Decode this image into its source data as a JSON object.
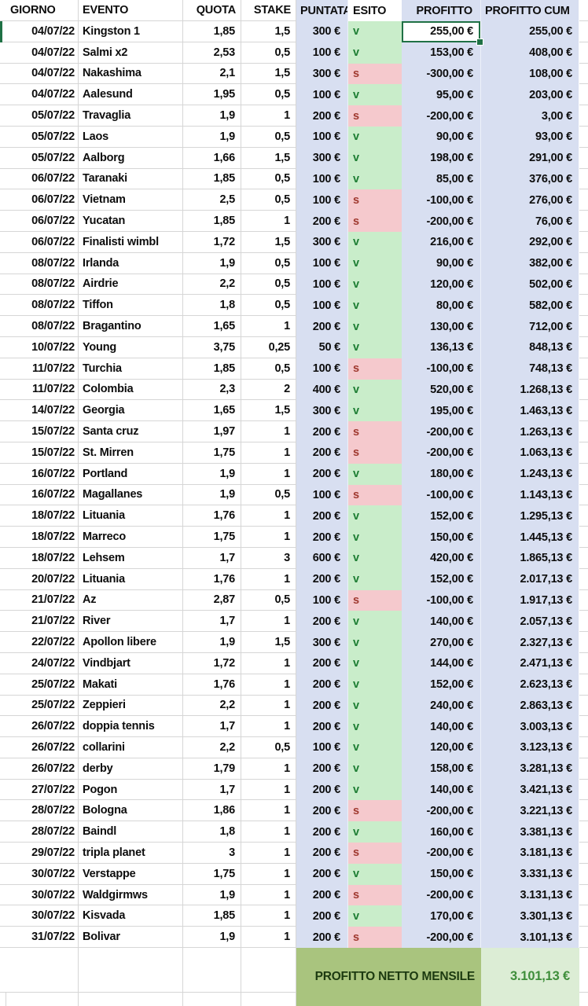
{
  "sheet": {
    "columns": [
      {
        "key": "giorno",
        "label": "GIORNO"
      },
      {
        "key": "evento",
        "label": "EVENTO"
      },
      {
        "key": "quota",
        "label": "QUOTA"
      },
      {
        "key": "stake",
        "label": "STAKE"
      },
      {
        "key": "puntata",
        "label": "PUNTATA"
      },
      {
        "key": "esito",
        "label": "ESITO"
      },
      {
        "key": "profitto",
        "label": "PROFITTO"
      },
      {
        "key": "cum",
        "label": "PROFITTO CUM"
      }
    ],
    "rows": [
      {
        "giorno": "04/07/22",
        "evento": "Kingston 1",
        "quota": "1,85",
        "stake": "1,5",
        "puntata": "300 €",
        "esito": "v",
        "profitto": "255,00 €",
        "cum": "255,00 €"
      },
      {
        "giorno": "04/07/22",
        "evento": "Salmi x2",
        "quota": "2,53",
        "stake": "0,5",
        "puntata": "100 €",
        "esito": "v",
        "profitto": "153,00 €",
        "cum": "408,00 €"
      },
      {
        "giorno": "04/07/22",
        "evento": "Nakashima",
        "quota": "2,1",
        "stake": "1,5",
        "puntata": "300 €",
        "esito": "s",
        "profitto": "-300,00 €",
        "cum": "108,00 €"
      },
      {
        "giorno": "04/07/22",
        "evento": "Aalesund",
        "quota": "1,95",
        "stake": "0,5",
        "puntata": "100 €",
        "esito": "v",
        "profitto": "95,00 €",
        "cum": "203,00 €"
      },
      {
        "giorno": "05/07/22",
        "evento": "Travaglia",
        "quota": "1,9",
        "stake": "1",
        "puntata": "200 €",
        "esito": "s",
        "profitto": "-200,00 €",
        "cum": "3,00 €"
      },
      {
        "giorno": "05/07/22",
        "evento": "Laos",
        "quota": "1,9",
        "stake": "0,5",
        "puntata": "100 €",
        "esito": "v",
        "profitto": "90,00 €",
        "cum": "93,00 €"
      },
      {
        "giorno": "05/07/22",
        "evento": "Aalborg",
        "quota": "1,66",
        "stake": "1,5",
        "puntata": "300 €",
        "esito": "v",
        "profitto": "198,00 €",
        "cum": "291,00 €"
      },
      {
        "giorno": "06/07/22",
        "evento": "Taranaki",
        "quota": "1,85",
        "stake": "0,5",
        "puntata": "100 €",
        "esito": "v",
        "profitto": "85,00 €",
        "cum": "376,00 €"
      },
      {
        "giorno": "06/07/22",
        "evento": "Vietnam",
        "quota": "2,5",
        "stake": "0,5",
        "puntata": "100 €",
        "esito": "s",
        "profitto": "-100,00 €",
        "cum": "276,00 €"
      },
      {
        "giorno": "06/07/22",
        "evento": "Yucatan",
        "quota": "1,85",
        "stake": "1",
        "puntata": "200 €",
        "esito": "s",
        "profitto": "-200,00 €",
        "cum": "76,00 €"
      },
      {
        "giorno": "06/07/22",
        "evento": "Finalisti wimbl",
        "quota": "1,72",
        "stake": "1,5",
        "puntata": "300 €",
        "esito": "v",
        "profitto": "216,00 €",
        "cum": "292,00 €"
      },
      {
        "giorno": "08/07/22",
        "evento": "Irlanda",
        "quota": "1,9",
        "stake": "0,5",
        "puntata": "100 €",
        "esito": "v",
        "profitto": "90,00 €",
        "cum": "382,00 €"
      },
      {
        "giorno": "08/07/22",
        "evento": "Airdrie",
        "quota": "2,2",
        "stake": "0,5",
        "puntata": "100 €",
        "esito": "v",
        "profitto": "120,00 €",
        "cum": "502,00 €"
      },
      {
        "giorno": "08/07/22",
        "evento": "Tiffon",
        "quota": "1,8",
        "stake": "0,5",
        "puntata": "100 €",
        "esito": "v",
        "profitto": "80,00 €",
        "cum": "582,00 €"
      },
      {
        "giorno": "08/07/22",
        "evento": "Bragantino",
        "quota": "1,65",
        "stake": "1",
        "puntata": "200 €",
        "esito": "v",
        "profitto": "130,00 €",
        "cum": "712,00 €"
      },
      {
        "giorno": "10/07/22",
        "evento": "Young",
        "quota": "3,75",
        "stake": "0,25",
        "puntata": "50 €",
        "esito": "v",
        "profitto": "136,13 €",
        "cum": "848,13 €"
      },
      {
        "giorno": "11/07/22",
        "evento": "Turchia",
        "quota": "1,85",
        "stake": "0,5",
        "puntata": "100 €",
        "esito": "s",
        "profitto": "-100,00 €",
        "cum": "748,13 €"
      },
      {
        "giorno": "11/07/22",
        "evento": "Colombia",
        "quota": "2,3",
        "stake": "2",
        "puntata": "400 €",
        "esito": "v",
        "profitto": "520,00 €",
        "cum": "1.268,13 €"
      },
      {
        "giorno": "14/07/22",
        "evento": "Georgia",
        "quota": "1,65",
        "stake": "1,5",
        "puntata": "300 €",
        "esito": "v",
        "profitto": "195,00 €",
        "cum": "1.463,13 €"
      },
      {
        "giorno": "15/07/22",
        "evento": "Santa cruz",
        "quota": "1,97",
        "stake": "1",
        "puntata": "200 €",
        "esito": "s",
        "profitto": "-200,00 €",
        "cum": "1.263,13 €"
      },
      {
        "giorno": "15/07/22",
        "evento": "St. Mirren",
        "quota": "1,75",
        "stake": "1",
        "puntata": "200 €",
        "esito": "s",
        "profitto": "-200,00 €",
        "cum": "1.063,13 €"
      },
      {
        "giorno": "16/07/22",
        "evento": "Portland",
        "quota": "1,9",
        "stake": "1",
        "puntata": "200 €",
        "esito": "v",
        "profitto": "180,00 €",
        "cum": "1.243,13 €"
      },
      {
        "giorno": "16/07/22",
        "evento": "Magallanes",
        "quota": "1,9",
        "stake": "0,5",
        "puntata": "100 €",
        "esito": "s",
        "profitto": "-100,00 €",
        "cum": "1.143,13 €"
      },
      {
        "giorno": "18/07/22",
        "evento": "Lituania",
        "quota": "1,76",
        "stake": "1",
        "puntata": "200 €",
        "esito": "v",
        "profitto": "152,00 €",
        "cum": "1.295,13 €"
      },
      {
        "giorno": "18/07/22",
        "evento": "Marreco",
        "quota": "1,75",
        "stake": "1",
        "puntata": "200 €",
        "esito": "v",
        "profitto": "150,00 €",
        "cum": "1.445,13 €"
      },
      {
        "giorno": "18/07/22",
        "evento": "Lehsem",
        "quota": "1,7",
        "stake": "3",
        "puntata": "600 €",
        "esito": "v",
        "profitto": "420,00 €",
        "cum": "1.865,13 €"
      },
      {
        "giorno": "20/07/22",
        "evento": "Lituania",
        "quota": "1,76",
        "stake": "1",
        "puntata": "200 €",
        "esito": "v",
        "profitto": "152,00 €",
        "cum": "2.017,13 €"
      },
      {
        "giorno": "21/07/22",
        "evento": "Az",
        "quota": "2,87",
        "stake": "0,5",
        "puntata": "100 €",
        "esito": "s",
        "profitto": "-100,00 €",
        "cum": "1.917,13 €"
      },
      {
        "giorno": "21/07/22",
        "evento": "River",
        "quota": "1,7",
        "stake": "1",
        "puntata": "200 €",
        "esito": "v",
        "profitto": "140,00 €",
        "cum": "2.057,13 €"
      },
      {
        "giorno": "22/07/22",
        "evento": "Apollon libere",
        "quota": "1,9",
        "stake": "1,5",
        "puntata": "300 €",
        "esito": "v",
        "profitto": "270,00 €",
        "cum": "2.327,13 €"
      },
      {
        "giorno": "24/07/22",
        "evento": "Vindbjart",
        "quota": "1,72",
        "stake": "1",
        "puntata": "200 €",
        "esito": "v",
        "profitto": "144,00 €",
        "cum": "2.471,13 €"
      },
      {
        "giorno": "25/07/22",
        "evento": "Makati",
        "quota": "1,76",
        "stake": "1",
        "puntata": "200 €",
        "esito": "v",
        "profitto": "152,00 €",
        "cum": "2.623,13 €"
      },
      {
        "giorno": "25/07/22",
        "evento": "Zeppieri",
        "quota": "2,2",
        "stake": "1",
        "puntata": "200 €",
        "esito": "v",
        "profitto": "240,00 €",
        "cum": "2.863,13 €"
      },
      {
        "giorno": "26/07/22",
        "evento": "doppia tennis",
        "quota": "1,7",
        "stake": "1",
        "puntata": "200 €",
        "esito": "v",
        "profitto": "140,00 €",
        "cum": "3.003,13 €"
      },
      {
        "giorno": "26/07/22",
        "evento": "collarini",
        "quota": "2,2",
        "stake": "0,5",
        "puntata": "100 €",
        "esito": "v",
        "profitto": "120,00 €",
        "cum": "3.123,13 €"
      },
      {
        "giorno": "26/07/22",
        "evento": "derby",
        "quota": "1,79",
        "stake": "1",
        "puntata": "200 €",
        "esito": "v",
        "profitto": "158,00 €",
        "cum": "3.281,13 €"
      },
      {
        "giorno": "27/07/22",
        "evento": "Pogon",
        "quota": "1,7",
        "stake": "1",
        "puntata": "200 €",
        "esito": "v",
        "profitto": "140,00 €",
        "cum": "3.421,13 €"
      },
      {
        "giorno": "28/07/22",
        "evento": "Bologna",
        "quota": "1,86",
        "stake": "1",
        "puntata": "200 €",
        "esito": "s",
        "profitto": "-200,00 €",
        "cum": "3.221,13 €"
      },
      {
        "giorno": "28/07/22",
        "evento": "Baindl",
        "quota": "1,8",
        "stake": "1",
        "puntata": "200 €",
        "esito": "v",
        "profitto": "160,00 €",
        "cum": "3.381,13 €"
      },
      {
        "giorno": "29/07/22",
        "evento": "tripla planet",
        "quota": "3",
        "stake": "1",
        "puntata": "200 €",
        "esito": "s",
        "profitto": "-200,00 €",
        "cum": "3.181,13 €"
      },
      {
        "giorno": "30/07/22",
        "evento": "Verstappe",
        "quota": "1,75",
        "stake": "1",
        "puntata": "200 €",
        "esito": "v",
        "profitto": "150,00 €",
        "cum": "3.331,13 €"
      },
      {
        "giorno": "30/07/22",
        "evento": "Waldgirmws",
        "quota": "1,9",
        "stake": "1",
        "puntata": "200 €",
        "esito": "s",
        "profitto": "-200,00 €",
        "cum": "3.131,13 €"
      },
      {
        "giorno": "30/07/22",
        "evento": "Kisvada",
        "quota": "1,85",
        "stake": "1",
        "puntata": "200 €",
        "esito": "v",
        "profitto": "170,00 €",
        "cum": "3.301,13 €"
      },
      {
        "giorno": "31/07/22",
        "evento": "Bolivar",
        "quota": "1,9",
        "stake": "1",
        "puntata": "200 €",
        "esito": "s",
        "profitto": "-200,00 €",
        "cum": "3.101,13 €"
      }
    ],
    "selection": {
      "row_index": 0,
      "column": "profitto",
      "value": "255,00 €"
    },
    "footer": {
      "label": "PROFITTO NETTO MENSILE",
      "value": "3.101,13 €"
    }
  },
  "colors": {
    "band_blue": "#d8dff1",
    "win_bg": "#c9edca",
    "win_text": "#1e7e34",
    "loss_bg": "#f5c9cd",
    "loss_text": "#a03a30",
    "selection_green": "#1f7145",
    "footer_label_bg": "#a9c47e",
    "footer_label_text": "#1c3a10",
    "footer_value_bg": "#dcedd5",
    "footer_value_text": "#3f8e3b",
    "gridline": "#d6d6d6"
  }
}
